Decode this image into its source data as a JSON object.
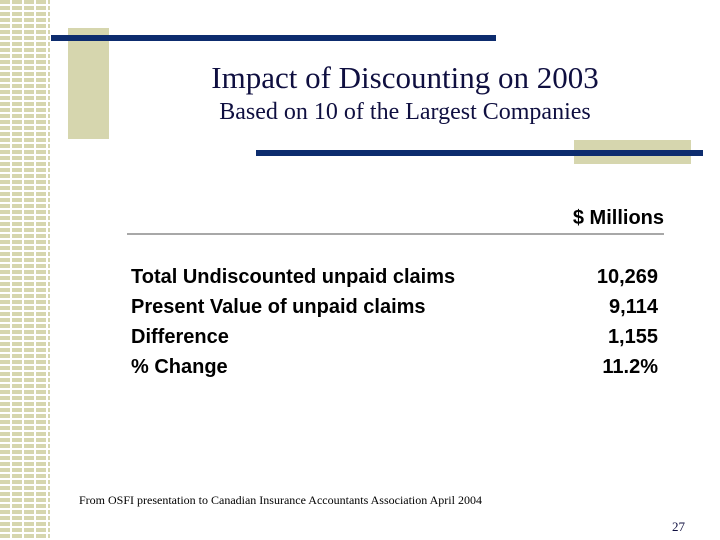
{
  "slide": {
    "title": "Impact of Discounting on 2003",
    "subtitle": "Based on 10 of the Largest Companies",
    "column_header": "$ Millions",
    "rows": [
      {
        "label": "Total Undiscounted unpaid claims",
        "value": "10,269"
      },
      {
        "label": "Present Value of unpaid claims",
        "value": "9,114"
      },
      {
        "label": "Difference",
        "value": "1,155"
      },
      {
        "label": "% Change",
        "value": "11.2%"
      }
    ],
    "source_note": "From OSFI presentation to Canadian Insurance Accountants Association April 2004",
    "page_number": "27"
  },
  "colors": {
    "accent_navy": "#0d2c6e",
    "accent_tan": "#d6d6ae",
    "title_text": "#0f0f40"
  }
}
